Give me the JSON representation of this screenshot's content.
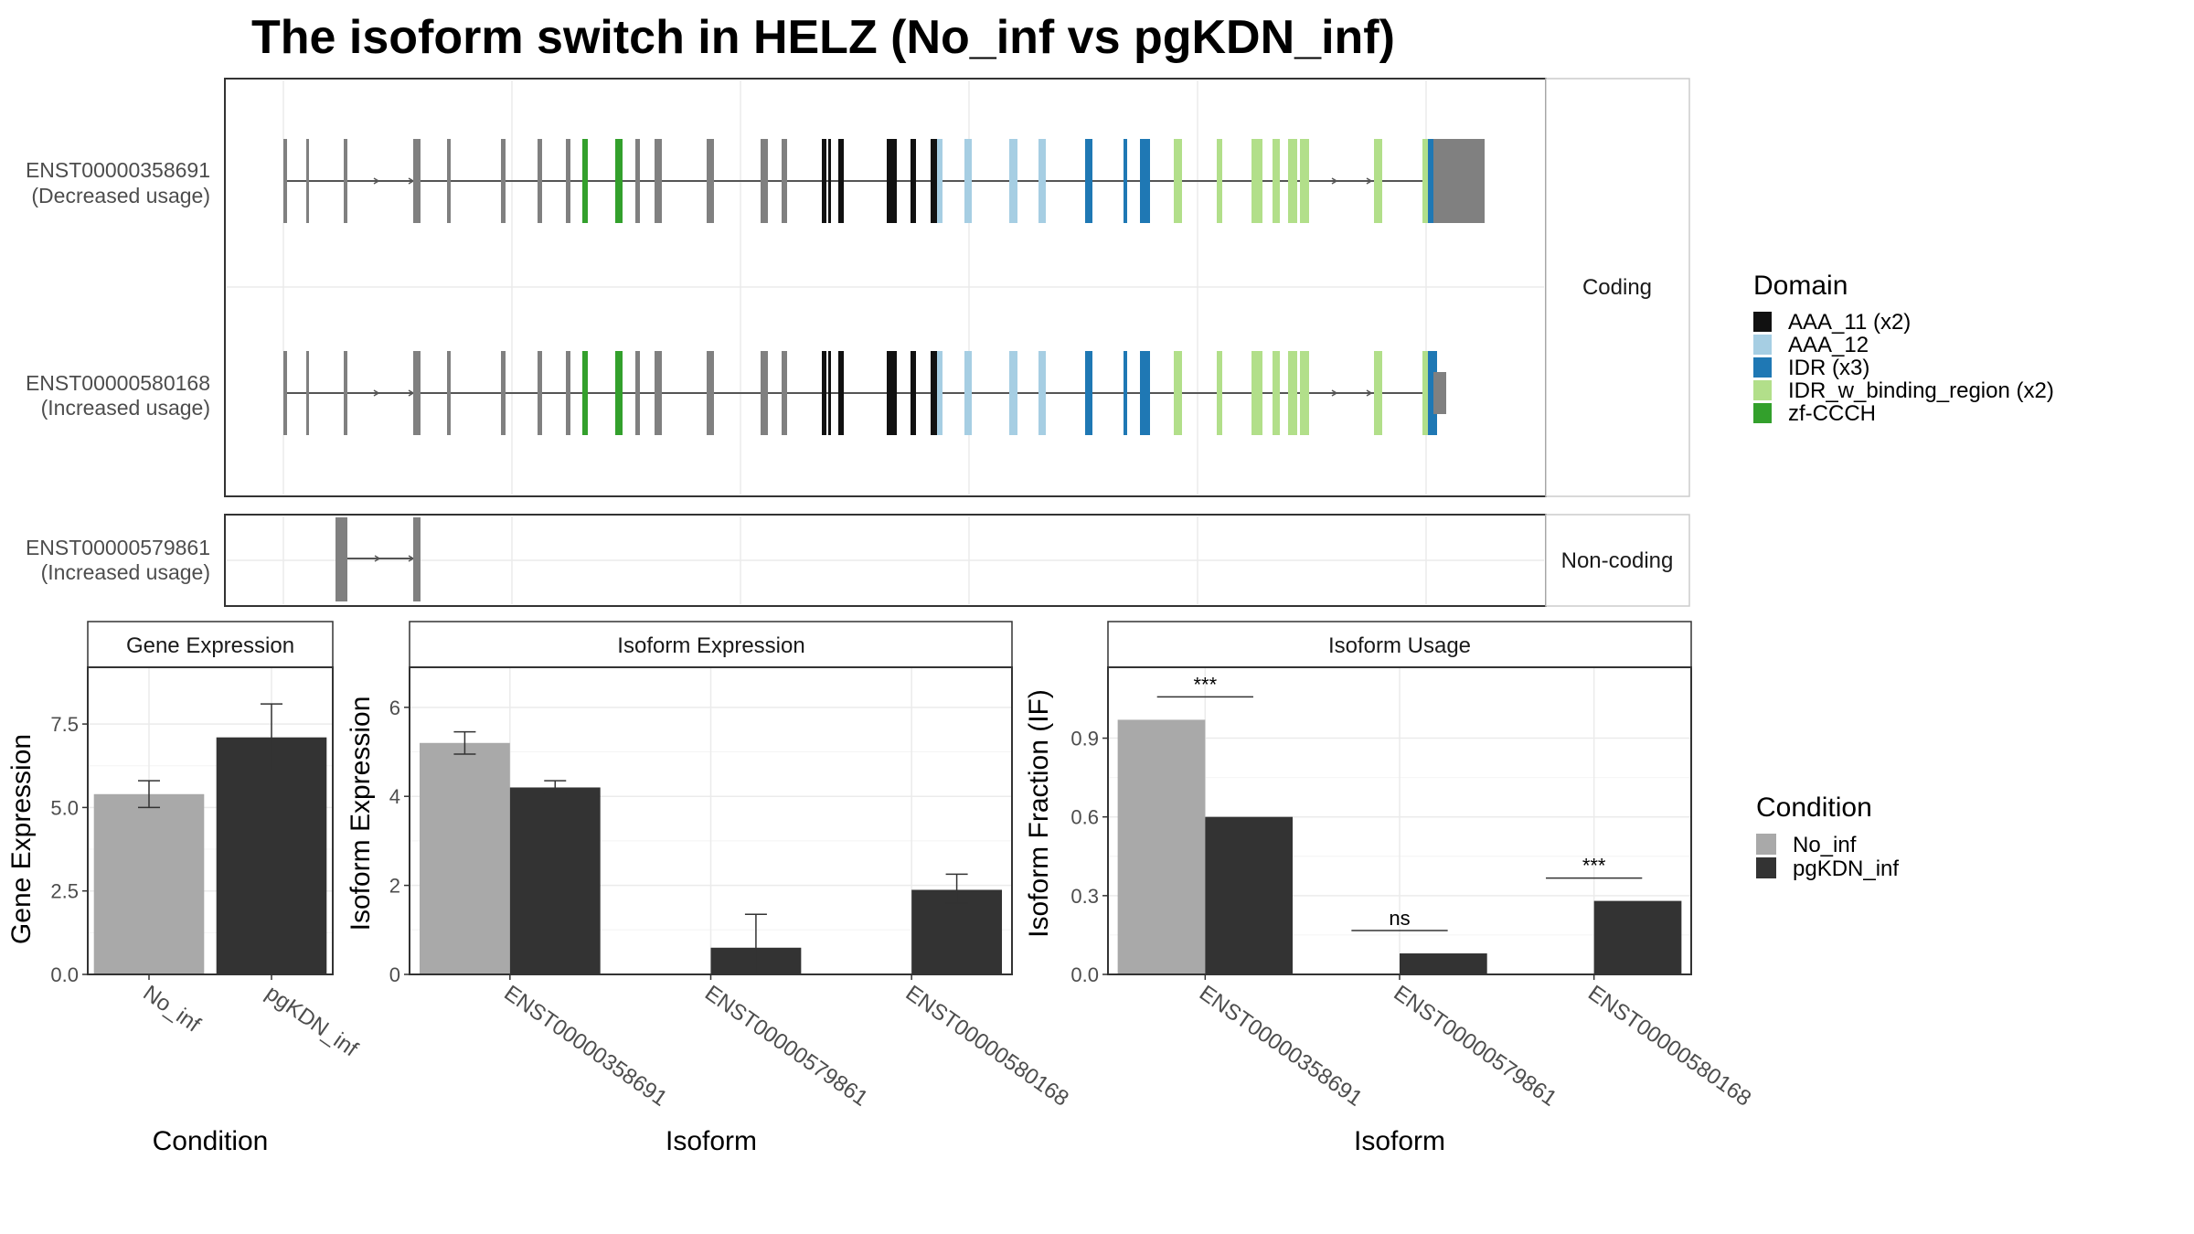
{
  "title": "The isoform switch in HELZ (No_inf vs pgKDN_inf)",
  "colors": {
    "no_inf": "#A9A9A9",
    "pgkdn_inf": "#333333",
    "exon": "#808080",
    "intron": "#555555",
    "domains": {
      "AAA_11 (x2)": "#111111",
      "AAA_12": "#A6CEE3",
      "IDR (x3)": "#1F78B4",
      "IDR_w_binding_region (x2)": "#B2DF8A",
      "zf-CCCH": "#33A02C"
    }
  },
  "structure": {
    "coding_strip": "Coding",
    "noncoding_strip": "Non-coding",
    "tx1_id": "ENST00000358691",
    "tx1_usage": "(Decreased usage)",
    "tx2_id": "ENST00000580168",
    "tx2_usage": "(Increased usage)",
    "tx3_id": "ENST00000579861",
    "tx3_usage": "(Increased usage)"
  },
  "domain_legend": {
    "title": "Domain",
    "items": [
      "AAA_11 (x2)",
      "AAA_12",
      "IDR (x3)",
      "IDR_w_binding_region (x2)",
      "zf-CCCH"
    ]
  },
  "condition_legend": {
    "title": "Condition",
    "items": [
      "No_inf",
      "pgKDN_inf"
    ]
  },
  "chart_data": [
    {
      "type": "bar",
      "title": "Gene Expression",
      "xlabel": "Condition",
      "ylabel": "Gene Expression",
      "categories": [
        "No_inf",
        "pgKDN_inf"
      ],
      "values": [
        5.4,
        7.1
      ],
      "error": [
        [
          5.0,
          5.8
        ],
        [
          6.1,
          8.1
        ]
      ],
      "ylim": [
        0,
        9.2
      ],
      "yticks": [
        "0.0",
        "2.5",
        "5.0",
        "7.5"
      ],
      "ytick_values": [
        0,
        2.5,
        5,
        7.5
      ]
    },
    {
      "type": "bar",
      "title": "Isoform Expression",
      "xlabel": "Isoform",
      "ylabel": "Isoform Expression",
      "categories": [
        "ENST00000358691",
        "ENST00000579861",
        "ENST00000580168"
      ],
      "series": [
        {
          "name": "No_inf",
          "values": [
            5.2,
            0.0,
            0.0
          ],
          "error": [
            [
              4.95,
              5.45
            ],
            null,
            null
          ]
        },
        {
          "name": "pgKDN_inf",
          "values": [
            4.2,
            0.6,
            1.9
          ],
          "error": [
            [
              4.05,
              4.35
            ],
            [
              0.0,
              1.35
            ],
            [
              1.6,
              2.25
            ]
          ]
        }
      ],
      "ylim": [
        0,
        6.9
      ],
      "yticks": [
        "0",
        "2",
        "4",
        "6"
      ],
      "ytick_values": [
        0,
        2,
        4,
        6
      ]
    },
    {
      "type": "bar",
      "title": "Isoform Usage",
      "xlabel": "Isoform",
      "ylabel": "Isoform Fraction (IF)",
      "categories": [
        "ENST00000358691",
        "ENST00000579861",
        "ENST00000580168"
      ],
      "series": [
        {
          "name": "No_inf",
          "values": [
            0.97,
            0.0,
            0.0
          ]
        },
        {
          "name": "pgKDN_inf",
          "values": [
            0.6,
            0.08,
            0.28
          ]
        }
      ],
      "significance": [
        "***",
        "ns",
        "***"
      ],
      "ylim": [
        0,
        1.17
      ],
      "yticks": [
        "0.0",
        "0.3",
        "0.6",
        "0.9"
      ],
      "ytick_values": [
        0,
        0.3,
        0.6,
        0.9
      ]
    }
  ]
}
